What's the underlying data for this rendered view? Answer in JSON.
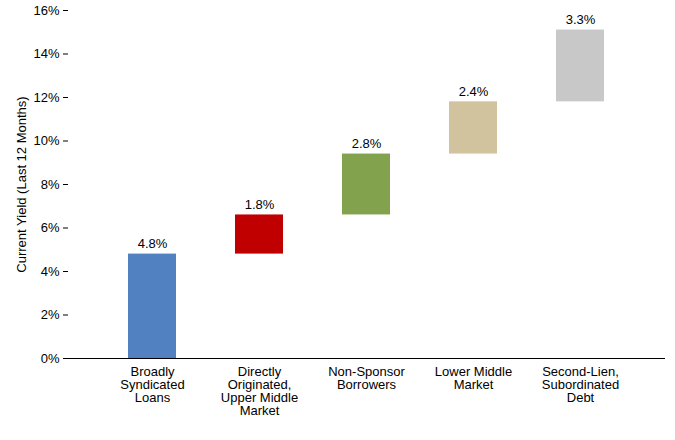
{
  "chart_data": {
    "type": "waterfall",
    "y_label": "Current Yield (Last 12 Months)",
    "categories": [
      "Broadly\nSyndicated\nLoans",
      "Directly\nOriginated,\nUpper Middle\nMarket",
      "Non-Sponsor\nBorrowers",
      "Lower Middle\nMarket",
      "Second-Lien,\nSubordinated\nDebt"
    ],
    "values": [
      4.8,
      1.8,
      2.8,
      2.4,
      3.3
    ],
    "value_labels": [
      "4.8%",
      "1.8%",
      "2.8%",
      "2.4%",
      "3.3%"
    ],
    "colors": [
      "#5181c0",
      "#c00000",
      "#82a24e",
      "#d1c39d",
      "#c8c8c8"
    ],
    "ylim": [
      0,
      16
    ],
    "yticks": [
      {
        "value": 0,
        "label": "0%"
      },
      {
        "value": 2,
        "label": "2%"
      },
      {
        "value": 4,
        "label": "4%"
      },
      {
        "value": 6,
        "label": "6%"
      },
      {
        "value": 8,
        "label": "8%"
      },
      {
        "value": 10,
        "label": "10%"
      },
      {
        "value": 12,
        "label": "12%"
      },
      {
        "value": 14,
        "label": "14%"
      },
      {
        "value": 16,
        "label": "16%"
      }
    ],
    "grid": false,
    "data_labels": true
  }
}
